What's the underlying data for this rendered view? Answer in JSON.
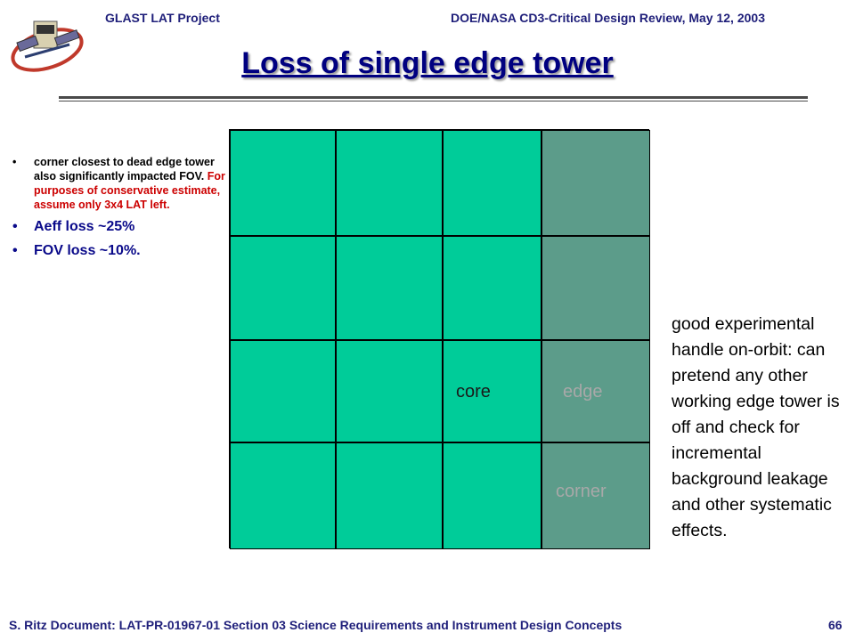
{
  "header": {
    "left": "GLAST LAT Project",
    "right": "DOE/NASA CD3-Critical Design Review, May 12, 2003"
  },
  "title": "Loss of single edge tower",
  "bullets": [
    {
      "size": "small",
      "text_black": "corner closest to dead edge tower also significantly impacted FOV.",
      "text_red": "For purposes of conservative estimate, assume only 3x4 LAT left."
    },
    {
      "size": "large",
      "text": "Aeff loss ~25%"
    },
    {
      "size": "large",
      "text": "FOV loss ~10%."
    }
  ],
  "grid": {
    "rows": 4,
    "cols": 4,
    "dead_column": 4,
    "labels": {
      "core": "core",
      "edge": "edge",
      "corner": "corner"
    },
    "colors": {
      "working": "#00cc99",
      "dead": "#5c9c8a"
    }
  },
  "note": "good experimental handle on-orbit: can pretend any other working edge tower is off and check for incremental background leakage and other systematic effects.",
  "footer": {
    "text": "S. Ritz Document: LAT-PR-01967-01 Section 03 Science Requirements and Instrument Design Concepts",
    "page": "66"
  },
  "icons": {
    "logo": "glast-satellite-logo"
  }
}
